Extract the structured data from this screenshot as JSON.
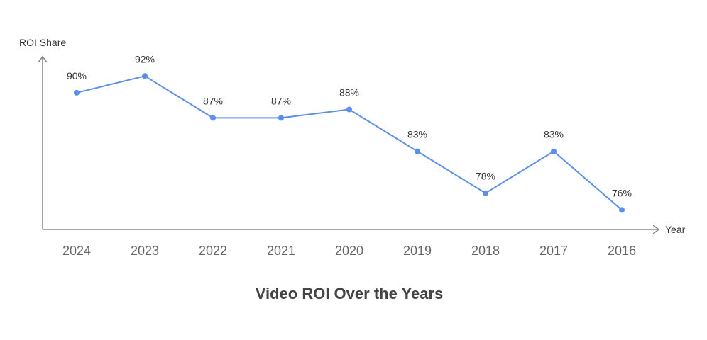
{
  "chart_data": {
    "type": "line",
    "title": "Video ROI Over the Years",
    "xlabel": "Year",
    "ylabel": "ROI Share",
    "categories": [
      "2024",
      "2023",
      "2022",
      "2021",
      "2020",
      "2019",
      "2018",
      "2017",
      "2016"
    ],
    "series": [
      {
        "name": "ROI Share",
        "values": [
          90,
          92,
          87,
          87,
          88,
          83,
          78,
          83,
          76
        ],
        "labels": [
          "90%",
          "92%",
          "87%",
          "87%",
          "88%",
          "83%",
          "78%",
          "83%",
          "76%"
        ]
      }
    ],
    "ylim": [
      74,
      96
    ],
    "grid": false,
    "legend": "none",
    "colors": {
      "series": "#5B8FE8",
      "axis": "#8a8a8a"
    }
  }
}
